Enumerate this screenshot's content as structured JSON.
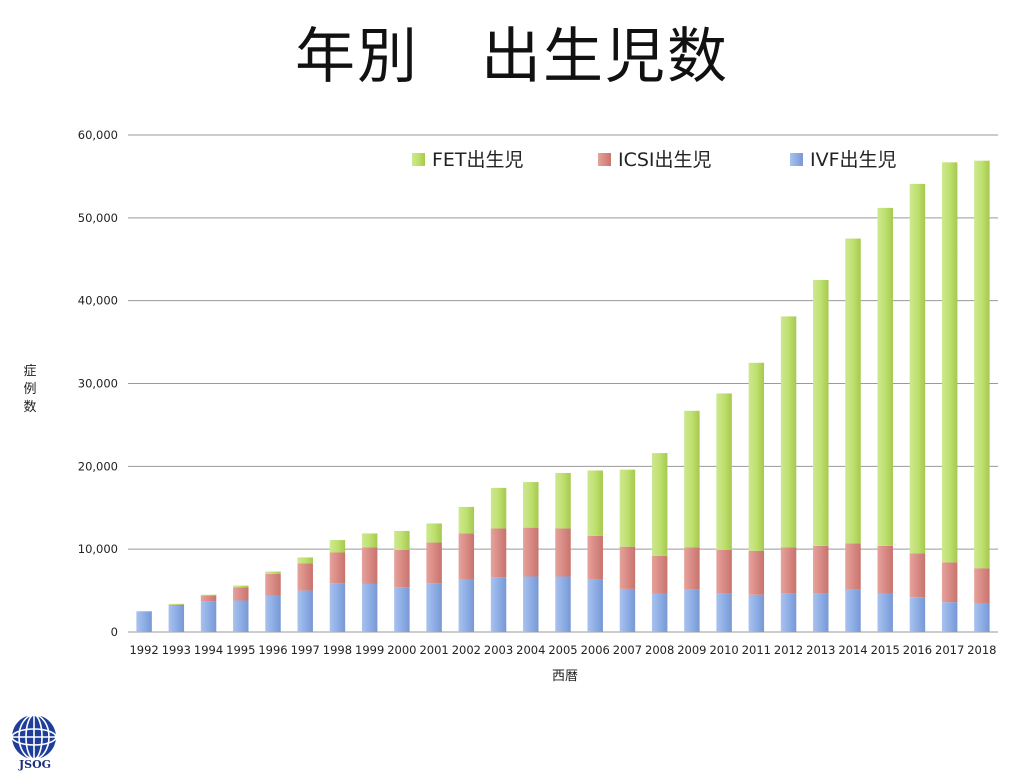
{
  "page_title": "年別　出生児数",
  "logo_text": "JSOG",
  "chart_data": {
    "type": "bar",
    "stacked": true,
    "categories": [
      "1992",
      "1993",
      "1994",
      "1995",
      "1996",
      "1997",
      "1998",
      "1999",
      "2000",
      "2001",
      "2002",
      "2003",
      "2004",
      "2005",
      "2006",
      "2007",
      "2008",
      "2009",
      "2010",
      "2011",
      "2012",
      "2013",
      "2014",
      "2015",
      "2016",
      "2017",
      "2018"
    ],
    "series": [
      {
        "name": "IVF出生児",
        "color": "#8eaee6",
        "values": [
          2500,
          3200,
          3700,
          3800,
          4400,
          5000,
          5900,
          5800,
          5400,
          5900,
          6400,
          6600,
          6700,
          6700,
          6300,
          5200,
          4600,
          5100,
          4700,
          4500,
          4700,
          4700,
          5100,
          4600,
          4200,
          3600,
          3400
        ]
      },
      {
        "name": "ICSI出生児",
        "color": "#d98a84",
        "values": [
          0,
          100,
          700,
          1600,
          2600,
          3300,
          3700,
          4400,
          4500,
          4900,
          5500,
          5900,
          5900,
          5800,
          5300,
          5100,
          4600,
          5100,
          5200,
          5300,
          5500,
          5700,
          5600,
          5800,
          5300,
          4800,
          4300
        ]
      },
      {
        "name": "FET出生児",
        "color": "#b6d85f",
        "values": [
          0,
          100,
          100,
          200,
          300,
          700,
          1500,
          1700,
          2300,
          2300,
          3200,
          4900,
          5500,
          6700,
          7900,
          9300,
          12400,
          16500,
          18900,
          22700,
          27900,
          32100,
          36800,
          40800,
          44600,
          48300,
          49200
        ]
      }
    ],
    "legend_order": [
      "FET出生児",
      "ICSI出生児",
      "IVF出生児"
    ],
    "ylim": [
      0,
      60000
    ],
    "yticks": [
      0,
      10000,
      20000,
      30000,
      40000,
      50000,
      60000
    ],
    "ytick_labels": [
      "0",
      "10,000",
      "20,000",
      "30,000",
      "40,000",
      "50,000",
      "60,000"
    ],
    "xlabel": "西暦",
    "ylabel": "症例数",
    "legend_position": "top-right",
    "grid": true
  }
}
